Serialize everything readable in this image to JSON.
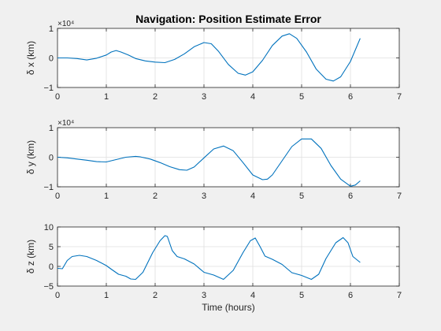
{
  "figure": {
    "title": "Navigation: Position Estimate Error",
    "xlabel": "Time (hours)",
    "line_color": "#0072bd",
    "background": "#f0f0f0"
  },
  "chart_data": [
    {
      "type": "line",
      "ylabel": "δ x (km)",
      "exponent_label": "×10⁴",
      "xlim": [
        0,
        7
      ],
      "ylim": [
        -1,
        1
      ],
      "y_scale": 10000,
      "xticks": [
        0,
        1,
        2,
        3,
        4,
        5,
        6,
        7
      ],
      "yticks": [
        -1,
        0,
        1
      ],
      "grid": true,
      "series": [
        {
          "x": [
            0,
            0.2,
            0.4,
            0.6,
            0.8,
            1.0,
            1.1,
            1.2,
            1.3,
            1.45,
            1.6,
            1.8,
            2.0,
            2.2,
            2.4,
            2.6,
            2.8,
            3.0,
            3.15,
            3.3,
            3.5,
            3.7,
            3.85,
            4.0,
            4.2,
            4.4,
            4.6,
            4.75,
            4.9,
            5.1,
            5.3,
            5.5,
            5.65,
            5.8,
            6.0,
            6.2
          ],
          "y": [
            0.0,
            0.0,
            -0.02,
            -0.07,
            -0.01,
            0.1,
            0.2,
            0.25,
            0.2,
            0.1,
            -0.02,
            -0.1,
            -0.14,
            -0.16,
            -0.05,
            0.14,
            0.38,
            0.52,
            0.48,
            0.22,
            -0.22,
            -0.52,
            -0.58,
            -0.47,
            -0.08,
            0.42,
            0.74,
            0.82,
            0.66,
            0.2,
            -0.38,
            -0.72,
            -0.78,
            -0.64,
            -0.12,
            0.66
          ]
        }
      ]
    },
    {
      "type": "line",
      "ylabel": "δ y (km)",
      "exponent_label": "×10⁴",
      "xlim": [
        0,
        7
      ],
      "ylim": [
        -1,
        1
      ],
      "y_scale": 10000,
      "xticks": [
        0,
        1,
        2,
        3,
        4,
        5,
        6,
        7
      ],
      "yticks": [
        -1,
        0,
        1
      ],
      "grid": true,
      "series": [
        {
          "x": [
            0,
            0.2,
            0.4,
            0.6,
            0.8,
            1.0,
            1.2,
            1.4,
            1.6,
            1.7,
            1.9,
            2.1,
            2.3,
            2.5,
            2.65,
            2.8,
            3.0,
            3.2,
            3.4,
            3.6,
            3.8,
            4.0,
            4.2,
            4.3,
            4.4,
            4.6,
            4.8,
            5.0,
            5.2,
            5.4,
            5.6,
            5.8,
            6.0,
            6.1,
            6.2
          ],
          "y": [
            0.0,
            -0.02,
            -0.06,
            -0.1,
            -0.15,
            -0.16,
            -0.08,
            0.0,
            0.03,
            0.01,
            -0.06,
            -0.18,
            -0.32,
            -0.42,
            -0.44,
            -0.33,
            -0.02,
            0.28,
            0.38,
            0.22,
            -0.18,
            -0.6,
            -0.76,
            -0.74,
            -0.6,
            -0.12,
            0.36,
            0.62,
            0.62,
            0.3,
            -0.28,
            -0.74,
            -0.98,
            -0.94,
            -0.8
          ]
        }
      ]
    },
    {
      "type": "line",
      "ylabel": "δ z (km)",
      "exponent_label": "",
      "xlim": [
        0,
        7
      ],
      "ylim": [
        -5,
        10
      ],
      "y_scale": 1,
      "xticks": [
        0,
        1,
        2,
        3,
        4,
        5,
        6,
        7
      ],
      "yticks": [
        -5,
        0,
        5,
        10
      ],
      "grid": true,
      "series": [
        {
          "x": [
            0,
            0.1,
            0.2,
            0.3,
            0.45,
            0.6,
            0.8,
            1.0,
            1.1,
            1.25,
            1.4,
            1.5,
            1.6,
            1.75,
            1.95,
            2.1,
            2.2,
            2.25,
            2.35,
            2.45,
            2.6,
            2.8,
            3.0,
            3.2,
            3.4,
            3.6,
            3.8,
            3.95,
            4.05,
            4.15,
            4.25,
            4.4,
            4.6,
            4.8,
            5.0,
            5.2,
            5.35,
            5.5,
            5.7,
            5.85,
            5.95,
            6.05,
            6.2
          ],
          "y": [
            -0.5,
            -0.6,
            1.5,
            2.5,
            2.8,
            2.5,
            1.5,
            0.2,
            -0.7,
            -2.0,
            -2.5,
            -3.2,
            -3.3,
            -1.5,
            3.5,
            6.5,
            7.8,
            7.6,
            4.0,
            2.5,
            1.9,
            0.6,
            -1.5,
            -2.2,
            -3.3,
            -1.0,
            3.5,
            6.5,
            7.2,
            5.0,
            2.6,
            1.8,
            0.5,
            -1.6,
            -2.3,
            -3.3,
            -2.0,
            2.0,
            6.0,
            7.3,
            6.0,
            2.5,
            1.0
          ]
        }
      ]
    }
  ]
}
